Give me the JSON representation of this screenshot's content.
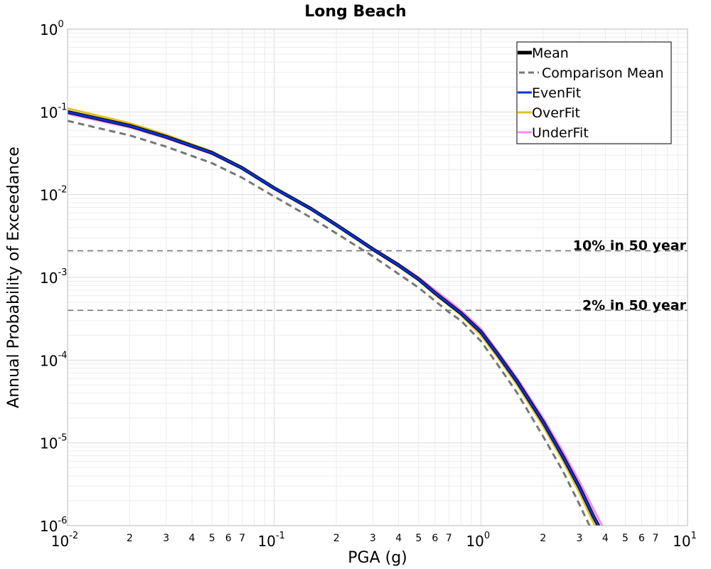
{
  "chart_data": {
    "type": "line",
    "title": "Long Beach",
    "xlabel": "PGA (g)",
    "ylabel": "Annual Probability of Exceedance",
    "x_scale": "log",
    "y_scale": "log",
    "xlim": [
      0.01,
      10
    ],
    "ylim": [
      1e-06,
      1
    ],
    "grid": true,
    "legend_position": "top-right",
    "x_major_ticks": [
      {
        "value": 0.01,
        "base": "10",
        "exp": "-2"
      },
      {
        "value": 0.1,
        "base": "10",
        "exp": "-1"
      },
      {
        "value": 1,
        "base": "10",
        "exp": "0"
      },
      {
        "value": 10,
        "base": "10",
        "exp": "1"
      }
    ],
    "x_minor_labels": [
      "2",
      "3",
      "4",
      "5",
      "6",
      "7"
    ],
    "y_major_ticks": [
      {
        "value": 1,
        "base": "10",
        "exp": "0"
      },
      {
        "value": 0.1,
        "base": "10",
        "exp": "-1"
      },
      {
        "value": 0.01,
        "base": "10",
        "exp": "-2"
      },
      {
        "value": 0.001,
        "base": "10",
        "exp": "-3"
      },
      {
        "value": 0.0001,
        "base": "10",
        "exp": "-4"
      },
      {
        "value": 1e-05,
        "base": "10",
        "exp": "-5"
      },
      {
        "value": 1e-06,
        "base": "10",
        "exp": "-6"
      }
    ],
    "reference_lines": [
      {
        "label": "10% in 50 year",
        "y": 0.0021,
        "color": "#777777"
      },
      {
        "label": "2% in 50 year",
        "y": 0.0004,
        "color": "#777777"
      }
    ],
    "x": [
      0.01,
      0.02,
      0.03,
      0.05,
      0.07,
      0.1,
      0.15,
      0.2,
      0.3,
      0.4,
      0.5,
      0.6,
      0.7,
      0.8,
      1.0,
      1.2,
      1.5,
      2.0,
      2.5,
      3.0,
      3.5,
      4.0
    ],
    "series": [
      {
        "name": "Mean",
        "color": "#000000",
        "style": "solid",
        "width": 5,
        "values": [
          0.1,
          0.068,
          0.05,
          0.032,
          0.021,
          0.012,
          0.0068,
          0.0043,
          0.0022,
          0.0014,
          0.00095,
          0.00065,
          0.00048,
          0.00037,
          0.00022,
          0.00012,
          5.5e-05,
          1.8e-05,
          6.8e-06,
          2.9e-06,
          1.3e-06,
          7e-07
        ]
      },
      {
        "name": "Comparison Mean",
        "color": "#777777",
        "style": "dashed",
        "width": 3,
        "values": [
          0.078,
          0.052,
          0.038,
          0.024,
          0.016,
          0.0095,
          0.0053,
          0.0034,
          0.0018,
          0.0011,
          0.00075,
          0.00052,
          0.00038,
          0.0003,
          0.00017,
          9e-05,
          4e-05,
          1.2e-05,
          4.5e-06,
          1.8e-06,
          8e-07,
          4e-07
        ]
      },
      {
        "name": "EvenFit",
        "color": "#0033dd",
        "style": "solid",
        "width": 3,
        "values": [
          0.1,
          0.068,
          0.05,
          0.032,
          0.021,
          0.012,
          0.0068,
          0.0043,
          0.0022,
          0.0014,
          0.00095,
          0.00065,
          0.00048,
          0.00037,
          0.00022,
          0.00012,
          5.5e-05,
          1.8e-05,
          6.8e-06,
          2.9e-06,
          1.3e-06,
          7e-07
        ]
      },
      {
        "name": "OverFit",
        "color": "#e6c21a",
        "style": "solid",
        "width": 3,
        "values": [
          0.11,
          0.073,
          0.053,
          0.033,
          0.0215,
          0.012,
          0.0067,
          0.0042,
          0.00215,
          0.00135,
          0.00092,
          0.00062,
          0.00046,
          0.00035,
          0.0002,
          0.00011,
          5e-05,
          1.6e-05,
          6e-06,
          2.5e-06,
          1.1e-06,
          6e-07
        ]
      },
      {
        "name": "UnderFit",
        "color": "#ff88ee",
        "style": "solid",
        "width": 3,
        "values": [
          0.095,
          0.065,
          0.048,
          0.031,
          0.0205,
          0.0118,
          0.0068,
          0.0044,
          0.00225,
          0.00145,
          0.001,
          0.0007,
          0.00052,
          0.0004,
          0.00024,
          0.00013,
          6e-05,
          2e-05,
          7.8e-06,
          3.4e-06,
          1.6e-06,
          8.5e-07
        ]
      }
    ],
    "draw_order": [
      1,
      3,
      4,
      0,
      2
    ]
  }
}
